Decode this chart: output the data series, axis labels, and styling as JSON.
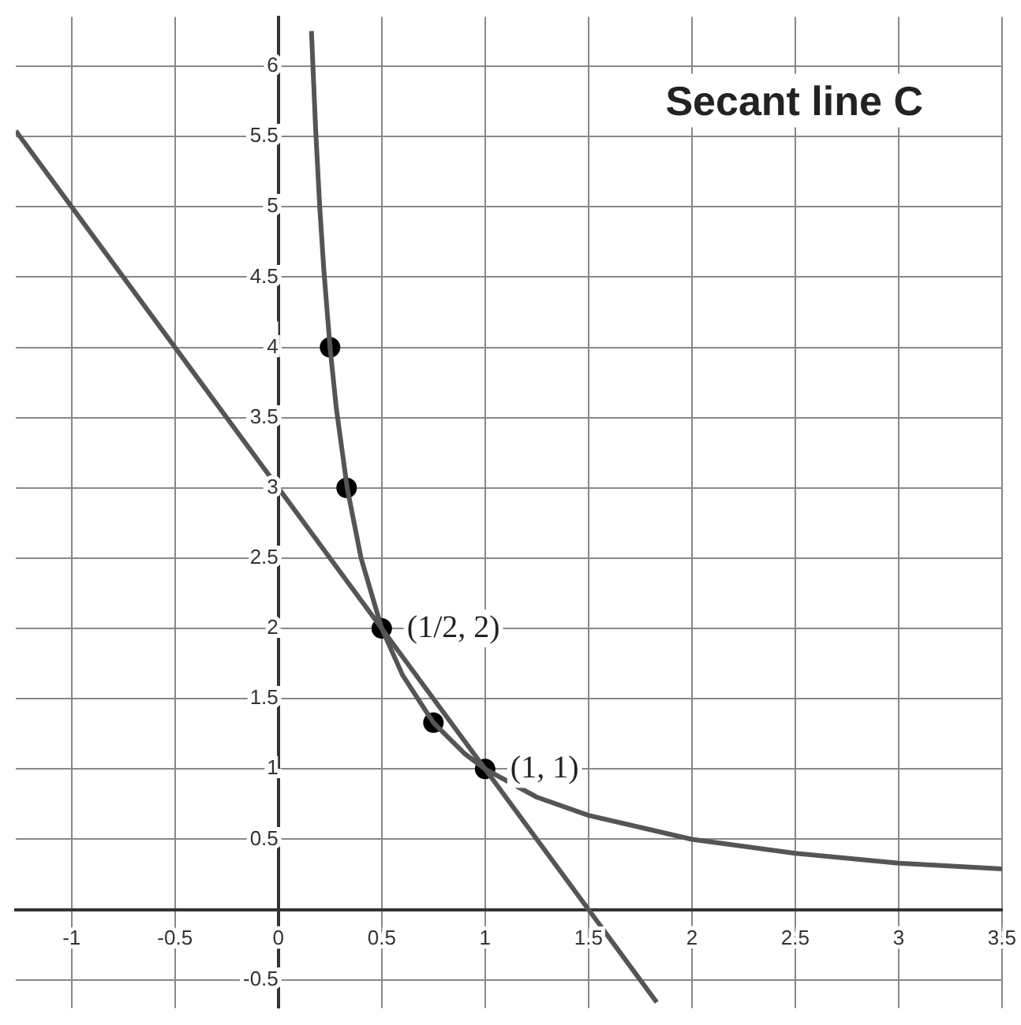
{
  "chart_data": {
    "type": "line",
    "annotations": [
      "Secant line C",
      {
        "text": "(1/2, 2)",
        "x": 0.5,
        "y": 2
      },
      {
        "text": "(1, 1)",
        "x": 1,
        "y": 1
      }
    ],
    "xlim": [
      -1.27,
      3.5
    ],
    "ylim": [
      -0.7,
      6.35
    ],
    "xticks": [
      -1,
      -0.5,
      0,
      0.5,
      1,
      1.5,
      2,
      2.5,
      3,
      3.5
    ],
    "yticks": [
      -0.5,
      {
        "value": 0,
        "label": null
      },
      0.5,
      1,
      1.5,
      2,
      2.5,
      3,
      3.5,
      4,
      4.5,
      5,
      5.5,
      6
    ],
    "grid": true,
    "legend": false,
    "series": [
      {
        "marker": "none",
        "color": "#555555",
        "x": [
          0.16,
          0.18,
          0.2,
          0.22,
          0.25,
          0.28,
          0.333,
          0.4,
          0.5,
          0.6,
          0.75,
          0.9,
          1,
          1.25,
          1.5,
          2,
          2.5,
          3,
          3.5
        ],
        "values": [
          6.25,
          5.56,
          5,
          4.55,
          4,
          3.57,
          3,
          2.5,
          2,
          1.67,
          1.33,
          1.11,
          1,
          0.8,
          0.67,
          0.5,
          0.4,
          0.33,
          0.29
        ]
      },
      {
        "marker": "none",
        "color": "#555555",
        "x": [
          -1.27,
          1.83
        ],
        "values": [
          5.54,
          -0.66
        ]
      },
      {
        "type": "scatter",
        "marker": "circle",
        "color": "#000000",
        "x": [
          0.25,
          0.33,
          0.5,
          0.75,
          1
        ],
        "values": [
          4,
          3,
          2,
          1.33,
          1
        ]
      }
    ]
  }
}
